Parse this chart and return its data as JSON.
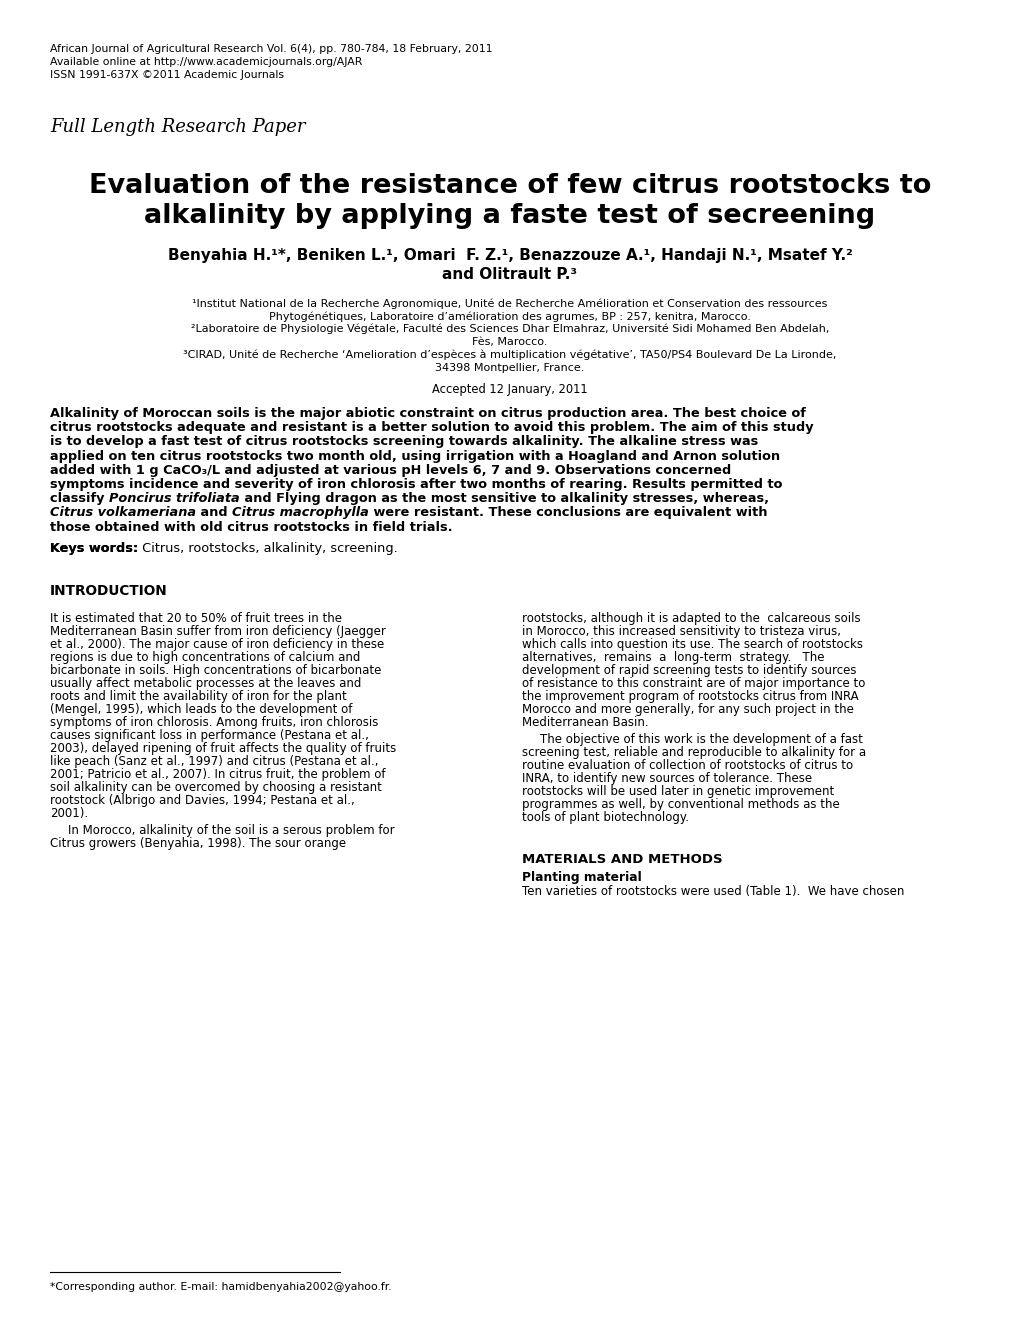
{
  "background_color": "#ffffff",
  "header_line1": "African Journal of Agricultural Research Vol. 6(4), pp. 780-784, 18 February, 2011",
  "header_line2": "Available online at http://www.academicjournals.org/AJAR",
  "header_line3": "ISSN 1991-637X ©2011 Academic Journals",
  "full_length_label": "Full Length Research Paper",
  "main_title_line1": "Evaluation of the resistance of few citrus rootstocks to",
  "main_title_line2": "alkalinity by applying a faste test of secreening",
  "authors_line1": "Benyahia H.¹*, Beniken L.¹, Omari  F. Z.¹, Benazzouze A.¹, Handaji N.¹, Msatef Y.²",
  "authors_line2": "and Olitrault P.³",
  "affil1": "¹Institut National de la Recherche Agronomique, Unité de Recherche Amélioration et Conservation des ressources",
  "affil1b": "Phytogénétiques, Laboratoire d’amélioration des agrumes, BP : 257, kenitra, Marocco.",
  "affil2": "²Laboratoire de Physiologie Végétale, Faculté des Sciences Dhar Elmahraz, Université Sidi Mohamed Ben Abdelah,",
  "affil2b": "Fès, Marocco.",
  "affil3": "³CIRAD, Unité de Recherche ‘Amelioration d’espèces à multiplication végétative’, TA50/PS4 Boulevard De La Lironde,",
  "affil3b": "34398 Montpellier, France.",
  "accepted": "Accepted 12 January, 2011",
  "abs_lines": [
    "Alkalinity of Moroccan soils is the major abiotic constraint on citrus production area. The best choice of",
    "citrus rootstocks adequate and resistant is a better solution to avoid this problem. The aim of this study",
    "is to develop a fast test of citrus rootstocks screening towards alkalinity. The alkaline stress was",
    "applied on ten citrus rootstocks two month old, using irrigation with a Hoagland and Arnon solution",
    "added with 1 g CaCO₃/L and adjusted at various pH levels 6, 7 and 9. Observations concerned",
    "symptoms incidence and severity of iron chlorosis after two months of rearing. Results permitted to",
    "classify |Poncirus trifoliata| and Flying dragon as the most sensitive to alkalinity stresses, whereas,",
    "|Citrus volkameriana| and |Citrus macrophylla| were resistant. These conclusions are equivalent with",
    "those obtained with old citrus rootstocks in field trials."
  ],
  "keywords_bold": "Keys words:",
  "keywords_text": " Citrus, rootstocks, alkalinity, screening.",
  "intro_heading": "INTRODUCTION",
  "intro_col1_para1": "It is estimated that 20 to 50% of fruit trees in the Mediterranean Basin suffer from iron deficiency (Jaegger et al., 2000). The major cause of iron deficiency in these regions is due to high concentrations of calcium and bicarbonate in soils. High concentrations of bicarbonate usually affect metabolic processes at the leaves and roots and limit the availability of iron for the plant (Mengel, 1995), which leads to the development of symptoms of iron chlorosis. Among fruits, iron chlorosis causes significant loss in performance (Pestana et al., 2003), delayed ripening of fruit affects the quality of fruits like peach (Sanz et al., 1997) and citrus (Pestana et al., 2001; Patricio et al., 2007). In citrus fruit, the problem of soil alkalinity can be overcomed by choosing a resistant rootstock (Albrigo and Davies, 1994; Pestana et al., 2001).",
  "intro_col1_para2": "In Morocco, alkalinity of the soil is a serous problem for Citrus growers (Benyahia, 1998). The sour orange",
  "intro_col2_para1": "rootstocks, although it is adapted to the  calcareous soils in Morocco, this increased sensitivity to tristeza virus, which calls into question its use. The search of rootstocks alternatives,  remains  a  long-term  strategy.   The development of rapid screening tests to identify sources of resistance to this constraint are of major importance to the improvement program of rootstocks citrus from INRA Morocco and more generally, for any such project in the Mediterranean Basin.",
  "intro_col2_para2": "The objective of this work is the development of a fast screening test, reliable and reproducible to alkalinity for a routine evaluation of collection of rootstocks of citrus to INRA, to identify new sources of tolerance. These rootstocks will be used later in genetic improvement programmes as well, by conventional methods as the tools of plant biotechnology.",
  "materials_heading": "MATERIALS AND METHODS",
  "planting_subheading": "Planting material",
  "planting_text": "Ten varieties of rootstocks were used (Table 1).  We have chosen",
  "footnote_line": "*Corresponding author. E-mail: hamidbenyahia2002@yahoo.fr.",
  "col1_lines": [
    "It is estimated that 20 to 50% of fruit trees in the",
    "Mediterranean Basin suffer from iron deficiency (Jaegger",
    "et al., 2000). The major cause of iron deficiency in these",
    "regions is due to high concentrations of calcium and",
    "bicarbonate in soils. High concentrations of bicarbonate",
    "usually affect metabolic processes at the leaves and",
    "roots and limit the availability of iron for the plant",
    "(Mengel, 1995), which leads to the development of",
    "symptoms of iron chlorosis. Among fruits, iron chlorosis",
    "causes significant loss in performance (Pestana et al.,",
    "2003), delayed ripening of fruit affects the quality of fruits",
    "like peach (Sanz et al., 1997) and citrus (Pestana et al.,",
    "2001; Patricio et al., 2007). In citrus fruit, the problem of",
    "soil alkalinity can be overcomed by choosing a resistant",
    "rootstock (Albrigo and Davies, 1994; Pestana et al.,",
    "2001)."
  ],
  "col1_lines2": [
    "In Morocco, alkalinity of the soil is a serous problem for",
    "Citrus growers (Benyahia, 1998). The sour orange"
  ],
  "col2_lines1": [
    "rootstocks, although it is adapted to the  calcareous soils",
    "in Morocco, this increased sensitivity to tristeza virus,",
    "which calls into question its use. The search of rootstocks",
    "alternatives,  remains  a  long-term  strategy.   The",
    "development of rapid screening tests to identify sources",
    "of resistance to this constraint are of major importance to",
    "the improvement program of rootstocks citrus from INRA",
    "Morocco and more generally, for any such project in the",
    "Mediterranean Basin."
  ],
  "col2_lines2": [
    "The objective of this work is the development of a fast",
    "screening test, reliable and reproducible to alkalinity for a",
    "routine evaluation of collection of rootstocks of citrus to",
    "INRA, to identify new sources of tolerance. These",
    "rootstocks will be used later in genetic improvement",
    "programmes as well, by conventional methods as the",
    "tools of plant biotechnology."
  ]
}
